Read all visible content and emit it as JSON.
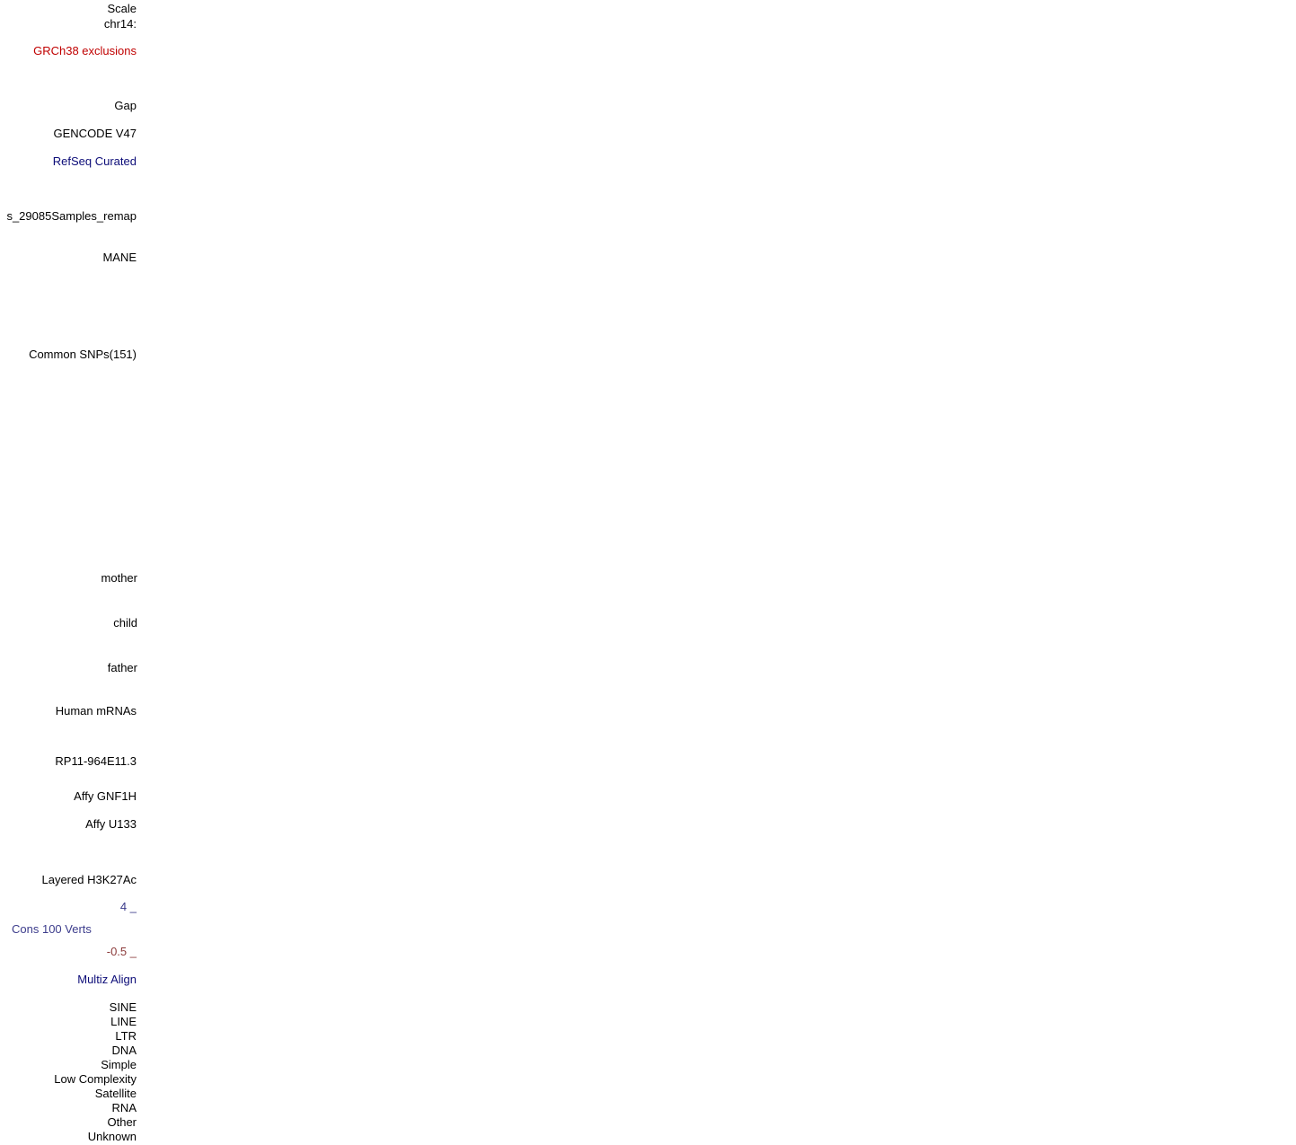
{
  "labels": [
    {
      "text": "Scale"
    },
    {
      "text": "chr14:"
    },
    {
      "text": "GRCh38 exclusions",
      "color": "#c00000"
    },
    {
      "text": "Gap"
    },
    {
      "text": "GENCODE V47"
    },
    {
      "text": "RefSeq Curated",
      "color": "#0c0c78"
    },
    {
      "text": "s_29085Samples_remap"
    },
    {
      "text": "MANE"
    },
    {
      "text": "Common SNPs(151)"
    },
    {
      "text": "mother"
    },
    {
      "text": "child"
    },
    {
      "text": "father"
    },
    {
      "text": "Human mRNAs"
    },
    {
      "text": "RP11-964E11.3"
    },
    {
      "text": "Affy GNF1H"
    },
    {
      "text": "Affy U133"
    },
    {
      "text": "Layered H3K27Ac"
    },
    {
      "text": "4 _",
      "color": "#3a3a8a"
    },
    {
      "text": "Cons 100 Verts",
      "color": "#3c3c8c",
      "align": "left"
    },
    {
      "text": "-0.5 _",
      "color": "#8b3a3a"
    },
    {
      "text": "Multiz Align",
      "color": "#0c0c78"
    },
    {
      "text": "SINE"
    },
    {
      "text": "LINE"
    },
    {
      "text": "LTR"
    },
    {
      "text": "DNA"
    },
    {
      "text": "Simple"
    },
    {
      "text": "Low Complexity"
    },
    {
      "text": "Satellite"
    },
    {
      "text": "RNA"
    },
    {
      "text": "Other"
    },
    {
      "text": "Unknown"
    }
  ]
}
